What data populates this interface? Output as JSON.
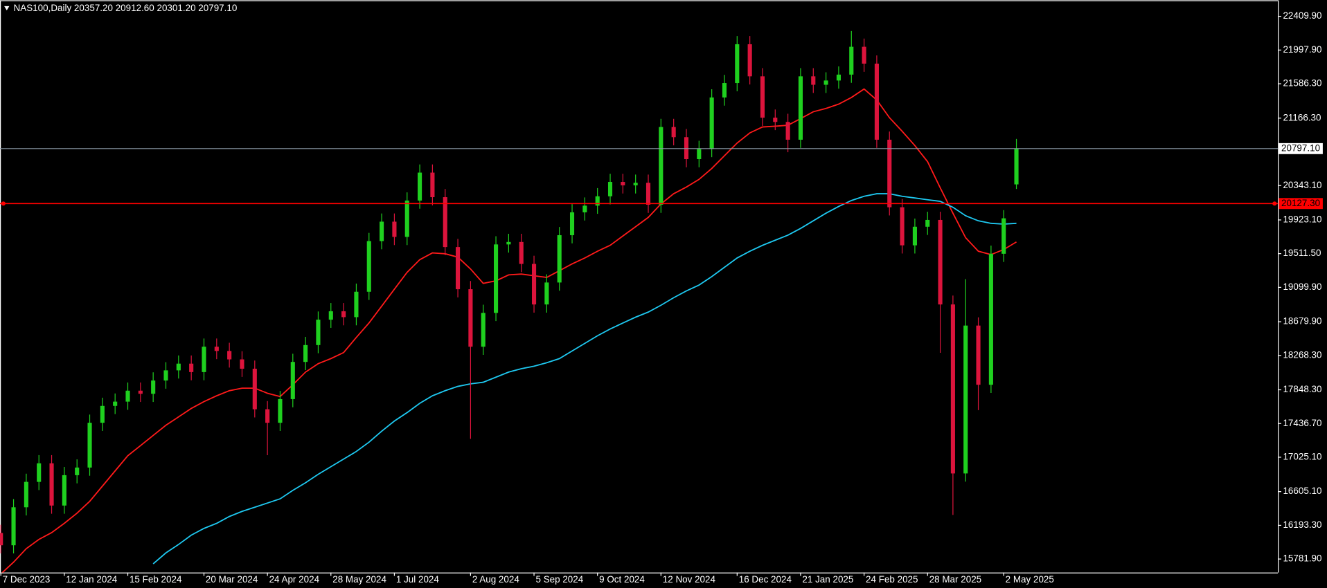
{
  "chart_data": {
    "type": "candlestick",
    "title": "NAS100,Daily  20357.20 20912.60 20301.20 20797.10",
    "categories": [
      "7 Dec 2023",
      null,
      null,
      null,
      null,
      "12 Jan 2024",
      null,
      null,
      null,
      null,
      "15 Feb 2024",
      null,
      null,
      null,
      null,
      null,
      "20 Mar 2024",
      null,
      null,
      null,
      null,
      "24 Apr 2024",
      null,
      null,
      null,
      null,
      "28 May 2024",
      null,
      null,
      null,
      null,
      "1 Jul 2024",
      null,
      null,
      null,
      null,
      null,
      "2 Aug 2024",
      null,
      null,
      null,
      null,
      "5 Sep 2024",
      null,
      null,
      null,
      null,
      "9 Oct 2024",
      null,
      null,
      null,
      null,
      "12 Nov 2024",
      null,
      null,
      null,
      null,
      null,
      "16 Dec 2024",
      null,
      null,
      null,
      null,
      "21 Jan 2025",
      null,
      null,
      null,
      null,
      "24 Feb 2025",
      null,
      null,
      null,
      null,
      "28 Mar 2025",
      null,
      null,
      null,
      null,
      null,
      "2 May 2025",
      null
    ],
    "open": [
      16100,
      15950,
      16414,
      16724,
      16951,
      16435,
      16806,
      16899,
      17446,
      17652,
      17704,
      17838,
      17800,
      17962,
      18086,
      18168,
      18065,
      18375,
      18323,
      18220,
      18106,
      17611,
      17446,
      17735,
      18189,
      18395,
      18705,
      18808,
      18736,
      19046,
      19665,
      19902,
      19716,
      20160,
      20501,
      20201,
      19592,
      19077,
      18375,
      18788,
      19624,
      19654,
      19386,
      18891,
      19159,
      19737,
      20016,
      20098,
      20212,
      20387,
      20346,
      20377,
      20109,
      21058,
      20934,
      20666,
      20790,
      21419,
      21595,
      22069,
      21677,
      21172,
      21120,
      20903,
      21677,
      21574,
      21626,
      21698,
      22038,
      21832,
      20903,
      20078,
      19613,
      19840,
      19923,
      18891,
      16827,
      18633,
      17910,
      19510,
      20357.2
    ],
    "high": [
      16200,
      16514,
      16824,
      17051,
      17051,
      16906,
      16999,
      17546,
      17752,
      17804,
      17938,
      17938,
      18062,
      18186,
      18268,
      18268,
      18475,
      18475,
      18423,
      18320,
      18206,
      17711,
      17835,
      18289,
      18495,
      18805,
      18908,
      18908,
      19146,
      19765,
      20002,
      20002,
      20260,
      20601,
      20601,
      20301,
      19692,
      19177,
      18888,
      19724,
      19754,
      19754,
      19486,
      19259,
      19837,
      20116,
      20198,
      20312,
      20487,
      20487,
      20477,
      20477,
      21158,
      21158,
      21034,
      20890,
      21519,
      21695,
      22169,
      22169,
      21777,
      21272,
      21220,
      21777,
      21777,
      21726,
      21798,
      22230,
      22138,
      21932,
      21003,
      20178,
      19940,
      20023,
      20023,
      19000,
      19200,
      18733,
      19610,
      20043,
      20912.6
    ],
    "low": [
      15850,
      15850,
      16314,
      16624,
      16335,
      16335,
      16706,
      16799,
      17346,
      17552,
      17604,
      17700,
      17700,
      17862,
      17986,
      17965,
      17965,
      18223,
      18120,
      18006,
      17511,
      17050,
      17346,
      17635,
      18089,
      18295,
      18605,
      18636,
      18636,
      18946,
      19565,
      19616,
      19616,
      20060,
      20101,
      19492,
      18977,
      17250,
      18275,
      18688,
      19524,
      19286,
      18791,
      18791,
      19059,
      19637,
      19916,
      19998,
      20112,
      20246,
      20246,
      20009,
      20009,
      20834,
      20566,
      20566,
      20690,
      21319,
      21495,
      21577,
      21072,
      21020,
      20750,
      20803,
      21474,
      21474,
      21526,
      21598,
      21732,
      20803,
      19978,
      19513,
      19513,
      19740,
      18300,
      16320,
      16727,
      17600,
      17810,
      19410,
      20301.2
    ],
    "close": [
      15950,
      16414,
      16724,
      16951,
      16435,
      16806,
      16899,
      17446,
      17652,
      17704,
      17838,
      17800,
      17962,
      18086,
      18168,
      18065,
      18375,
      18323,
      18220,
      18106,
      17611,
      17446,
      17735,
      18189,
      18395,
      18705,
      18808,
      18736,
      19046,
      19665,
      19902,
      19716,
      20160,
      20501,
      20201,
      19592,
      19077,
      18375,
      18788,
      19624,
      19654,
      19386,
      18891,
      19159,
      19737,
      20016,
      20098,
      20212,
      20387,
      20346,
      20377,
      20109,
      21058,
      20934,
      20666,
      20790,
      21419,
      21595,
      22069,
      21677,
      21172,
      21120,
      20903,
      21677,
      21574,
      21626,
      21698,
      22038,
      21832,
      20903,
      20078,
      19613,
      19840,
      19923,
      18891,
      16827,
      18633,
      17910,
      19510,
      19943,
      20797.1
    ],
    "up_color": "#1fd01f",
    "down_color": "#dc143c",
    "series": [
      {
        "color": "#ff1a1a",
        "values": [
          15599,
          15743,
          15908,
          16022,
          16104,
          16218,
          16342,
          16486,
          16672,
          16858,
          17044,
          17167,
          17291,
          17415,
          17518,
          17621,
          17704,
          17776,
          17838,
          17869,
          17869,
          17807,
          17766,
          17910,
          18065,
          18168,
          18230,
          18303,
          18488,
          18664,
          18870,
          19077,
          19283,
          19438,
          19520,
          19510,
          19469,
          19324,
          19149,
          19180,
          19252,
          19262,
          19242,
          19221,
          19304,
          19386,
          19458,
          19541,
          19613,
          19727,
          19840,
          19954,
          20119,
          20243,
          20325,
          20418,
          20552,
          20707,
          20862,
          20986,
          21058,
          21068,
          21079,
          21161,
          21244,
          21285,
          21337,
          21419,
          21522,
          21388,
          21172,
          21006,
          20831,
          20635,
          20315,
          20005,
          19706,
          19541,
          19500,
          19562,
          19654
        ]
      },
      {
        "color": "#1ec8f0",
        "values": [
          null,
          null,
          null,
          null,
          null,
          null,
          null,
          null,
          null,
          null,
          null,
          null,
          15723,
          15857,
          15960,
          16073,
          16156,
          16218,
          16301,
          16363,
          16414,
          16466,
          16517,
          16620,
          16713,
          16817,
          16909,
          17002,
          17095,
          17209,
          17343,
          17467,
          17570,
          17684,
          17776,
          17838,
          17890,
          17921,
          17941,
          18003,
          18065,
          18106,
          18137,
          18179,
          18230,
          18323,
          18416,
          18509,
          18591,
          18664,
          18736,
          18798,
          18881,
          18973,
          19056,
          19128,
          19231,
          19345,
          19458,
          19541,
          19613,
          19675,
          19737,
          19820,
          19913,
          20005,
          20088,
          20160,
          20212,
          20243,
          20243,
          20212,
          20191,
          20170,
          20150,
          20078,
          19975,
          19913,
          19882,
          19872,
          19882
        ]
      }
    ],
    "levels": [
      {
        "value": 20797.1,
        "label": "20797.10",
        "color": "#8c9aa8",
        "label_fill": "#ffffff",
        "label_text": "#000000"
      },
      {
        "value": 20127.3,
        "label": "20127.30",
        "color": "#ff0000",
        "label_fill": "#ff0000",
        "label_text": "#000000"
      }
    ],
    "ylim": [
      15617,
      22606
    ],
    "yticks": [
      {
        "value": 22409.9,
        "label": "22409.90"
      },
      {
        "value": 21997.9,
        "label": "21997.90"
      },
      {
        "value": 21586.3,
        "label": "21586.30"
      },
      {
        "value": 21166.3,
        "label": "21166.30"
      },
      {
        "value": 20343.1,
        "label": "20343.10"
      },
      {
        "value": 19923.1,
        "label": "19923.10"
      },
      {
        "value": 19511.5,
        "label": "19511.50"
      },
      {
        "value": 19099.9,
        "label": "19099.90"
      },
      {
        "value": 18679.9,
        "label": "18679.90"
      },
      {
        "value": 18268.3,
        "label": "18268.30"
      },
      {
        "value": 17848.3,
        "label": "17848.30"
      },
      {
        "value": 17436.7,
        "label": "17436.70"
      },
      {
        "value": 17025.1,
        "label": "17025.10"
      },
      {
        "value": 16605.1,
        "label": "16605.10"
      },
      {
        "value": 16193.3,
        "label": "16193.30"
      },
      {
        "value": 15781.9,
        "label": "15781.90"
      }
    ]
  }
}
